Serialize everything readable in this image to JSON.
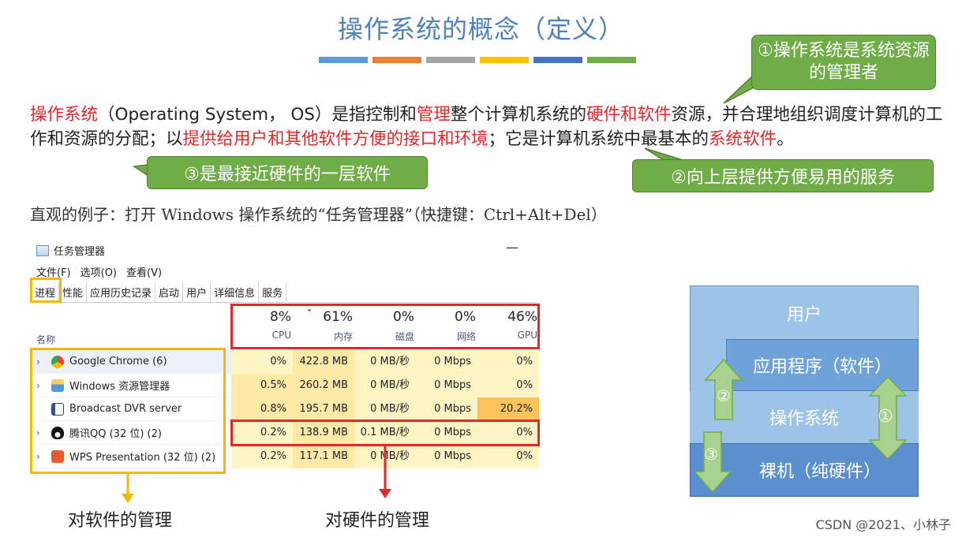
{
  "title": "操作系统的概念（定义）",
  "color_bar": [
    "#5b9bd5",
    "#ed7d31",
    "#a5a5a5",
    "#ffc000",
    "#4472c4",
    "#70ad47"
  ],
  "callouts": {
    "c1": "①操作系统是系统资源的管理者",
    "c2": "②向上层提供方便易用的服务",
    "c3": "③是最接近硬件的一层软件"
  },
  "paragraph": {
    "p1": "操作系统",
    "p2": "（Operating System， OS）是指控制和",
    "p3": "管理",
    "p4": "整个计算机系统的",
    "p5": "硬件和软件",
    "p6": "资源，并合理地组织调度计算机的工作和资源的分配；以",
    "p7": "提供给用户和其他软件方便的接口和环境",
    "p8": "；它是计算机系统中最基本的",
    "p9": "系统软件",
    "p10": "。"
  },
  "example": "直观的例子：打开 Windows 操作系统的“任务管理器”（快捷键：Ctrl+Alt+Del）",
  "task_manager": {
    "title": "任务管理器",
    "minimize": "—",
    "menu": [
      "文件(F)",
      "选项(O)",
      "查看(V)"
    ],
    "tabs": [
      "进程",
      "性能",
      "应用历史记录",
      "启动",
      "用户",
      "详细信息",
      "服务"
    ],
    "column_name": "名称",
    "stats": [
      {
        "value": "8%",
        "label": "CPU"
      },
      {
        "value": "61%",
        "label": "内存"
      },
      {
        "value": "0%",
        "label": "磁盘"
      },
      {
        "value": "0%",
        "label": "网络"
      },
      {
        "value": "46%",
        "label": "GPU"
      }
    ],
    "sort_indicator": "ˇ",
    "processes": [
      {
        "name": "Google Chrome (6)",
        "cpu": "0%",
        "mem": "422.8 MB",
        "disk": "0 MB/秒",
        "net": "0 Mbps",
        "gpu": "0%"
      },
      {
        "name": "Windows 资源管理器",
        "cpu": "0.5%",
        "mem": "260.2 MB",
        "disk": "0 MB/秒",
        "net": "0 Mbps",
        "gpu": "0%"
      },
      {
        "name": "Broadcast DVR server",
        "cpu": "0.8%",
        "mem": "195.7 MB",
        "disk": "0 MB/秒",
        "net": "0 Mbps",
        "gpu": "20.2%"
      },
      {
        "name": "腾讯QQ (32 位) (2)",
        "cpu": "0.2%",
        "mem": "138.9 MB",
        "disk": "0.1 MB/秒",
        "net": "0 Mbps",
        "gpu": "0%"
      },
      {
        "name": "WPS Presentation (32 位) (2)",
        "cpu": "0.2%",
        "mem": "117.1 MB",
        "disk": "0 MB/秒",
        "net": "0 Mbps",
        "gpu": "0%"
      }
    ]
  },
  "captions": {
    "software": "对软件的管理",
    "hardware": "对硬件的管理"
  },
  "layers": {
    "user": "用户",
    "app": "应用程序（软件）",
    "os": "操作系统",
    "hardware": "裸机（纯硬件）",
    "arrow1": "①",
    "arrow2": "②",
    "arrow3": "③"
  },
  "footer": "CSDN @2021、小林子"
}
